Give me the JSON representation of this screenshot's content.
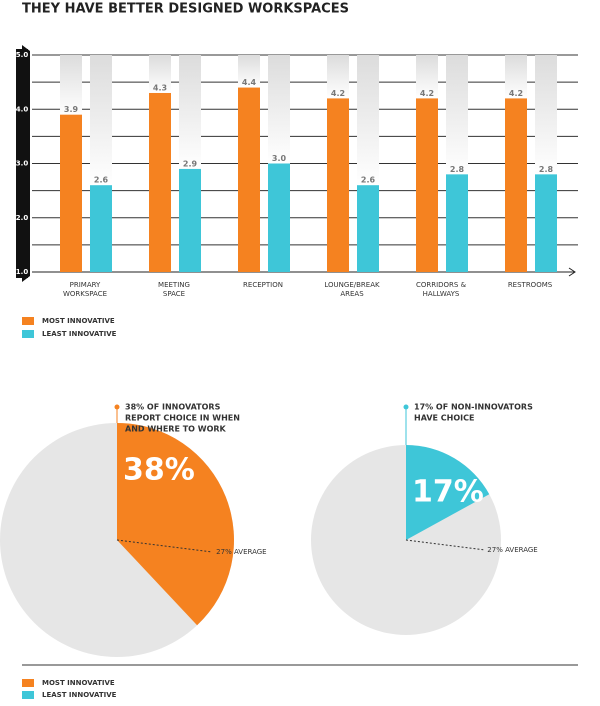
{
  "title": "THEY HAVE BETTER DESIGNED WORKSPACES",
  "chart_data": [
    {
      "type": "bar",
      "categories": [
        [
          "PRIMARY",
          "WORKSPACE"
        ],
        [
          "MEETING",
          "SPACE"
        ],
        [
          "RECEPTION"
        ],
        [
          "LOUNGE/BREAK",
          "AREAS"
        ],
        [
          "CORRIDORS &",
          "HALLWAYS"
        ],
        [
          "RESTROOMS"
        ]
      ],
      "series": [
        {
          "name": "MOST INNOVATIVE",
          "color": "#f58220",
          "values": [
            3.9,
            4.3,
            4.4,
            4.2,
            4.2,
            4.2
          ],
          "value_labels": [
            "3.9",
            "4.3",
            "4.4",
            "4.2",
            "4.2",
            "4.2"
          ]
        },
        {
          "name": "LEAST INNOVATIVE",
          "color": "#3ec6d8",
          "values": [
            2.6,
            2.9,
            3.0,
            2.6,
            2.8,
            2.8
          ],
          "value_labels": [
            "2.6",
            "2.9",
            "3.0",
            "2.6",
            "2.8",
            "2.8"
          ]
        }
      ],
      "ylim": [
        1,
        5
      ],
      "yticks": [
        {
          "value": 1,
          "label": "1.0"
        },
        {
          "value": 2,
          "label": "2.0"
        },
        {
          "value": 3,
          "label": "3.0"
        },
        {
          "value": 4,
          "label": "4.0"
        },
        {
          "value": 5,
          "label": "5.0"
        }
      ],
      "yminor": [
        1.5,
        2.5,
        3.5,
        4.5
      ],
      "grid": true
    },
    {
      "type": "pie",
      "series": [
        {
          "name": "MOST INNOVATIVE",
          "color": "#f58220",
          "values": [
            38
          ],
          "value_labels": [
            "38%"
          ],
          "annotation": [
            "38% OF INNOVATORS",
            "REPORT CHOICE IN WHEN",
            "AND WHERE TO WORK"
          ],
          "average": 27,
          "average_label": "27% AVERAGE"
        },
        {
          "name": "LEAST INNOVATIVE",
          "color": "#3ec6d8",
          "values": [
            17
          ],
          "value_labels": [
            "17%"
          ],
          "annotation": [
            "17% OF NON-INNOVATORS",
            "HAVE CHOICE"
          ],
          "average": 27,
          "average_label": "27% AVERAGE"
        }
      ]
    }
  ]
}
